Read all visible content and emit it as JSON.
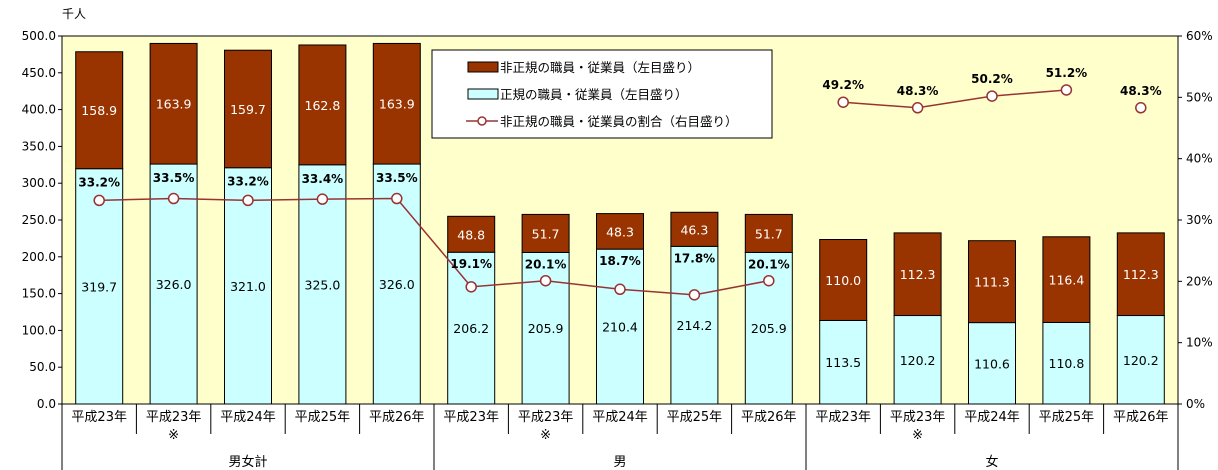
{
  "chart_data": {
    "type": "bar",
    "stacked": true,
    "unit_label": "千人",
    "categories": [
      "平成23年",
      "平成23年",
      "平成24年",
      "平成25年",
      "平成26年",
      "平成23年",
      "平成23年",
      "平成24年",
      "平成25年",
      "平成26年",
      "平成23年",
      "平成23年",
      "平成24年",
      "平成25年",
      "平成26年"
    ],
    "category_notes": [
      "",
      "※",
      "",
      "",
      "",
      "",
      "※",
      "",
      "",
      "",
      "",
      "※",
      "",
      "",
      ""
    ],
    "groups": [
      {
        "label": "男女計",
        "start": 0,
        "end": 4
      },
      {
        "label": "男",
        "start": 5,
        "end": 9
      },
      {
        "label": "女",
        "start": 10,
        "end": 14
      }
    ],
    "series": [
      {
        "name": "正規の職員・従業員（左目盛り）",
        "axis": "left",
        "color": "#ccffff",
        "values": [
          319.7,
          326.0,
          321.0,
          325.0,
          326.0,
          206.2,
          205.9,
          210.4,
          214.2,
          205.9,
          113.5,
          120.2,
          110.6,
          110.8,
          120.2
        ]
      },
      {
        "name": "非正規の職員・従業員（左目盛り）",
        "axis": "left",
        "color": "#993300",
        "values": [
          158.9,
          163.9,
          159.7,
          162.8,
          163.9,
          48.8,
          51.7,
          48.3,
          46.3,
          51.7,
          110.0,
          112.3,
          111.3,
          116.4,
          112.3
        ]
      },
      {
        "name": "非正規の職員・従業員の割合（右目盛り）",
        "axis": "right",
        "type": "line",
        "color": "#993333",
        "values": [
          33.2,
          33.5,
          33.2,
          33.4,
          33.5,
          19.1,
          20.1,
          18.7,
          17.8,
          20.1,
          49.2,
          48.3,
          50.2,
          51.2,
          48.3
        ],
        "labels": [
          "33.2%",
          "33.5%",
          "33.2%",
          "33.4%",
          "33.5%",
          "19.1%",
          "20.1%",
          "18.7%",
          "17.8%",
          "20.1%",
          "49.2%",
          "48.3%",
          "50.2%",
          "51.2%",
          "48.3%"
        ]
      }
    ],
    "line_segments": [
      [
        0,
        9
      ],
      [
        10,
        13
      ],
      [
        14,
        14
      ]
    ],
    "y_left": {
      "min": 0,
      "max": 500,
      "ticks": [
        "0.0",
        "50.0",
        "100.0",
        "150.0",
        "200.0",
        "250.0",
        "300.0",
        "350.0",
        "400.0",
        "450.0",
        "500.0"
      ]
    },
    "y_right": {
      "min": 0,
      "max": 60,
      "ticks": [
        "0%",
        "10%",
        "20%",
        "30%",
        "40%",
        "50%",
        "60%"
      ]
    },
    "plot_background": "#ffffcc",
    "legend_position": "top-center",
    "grid": false
  }
}
